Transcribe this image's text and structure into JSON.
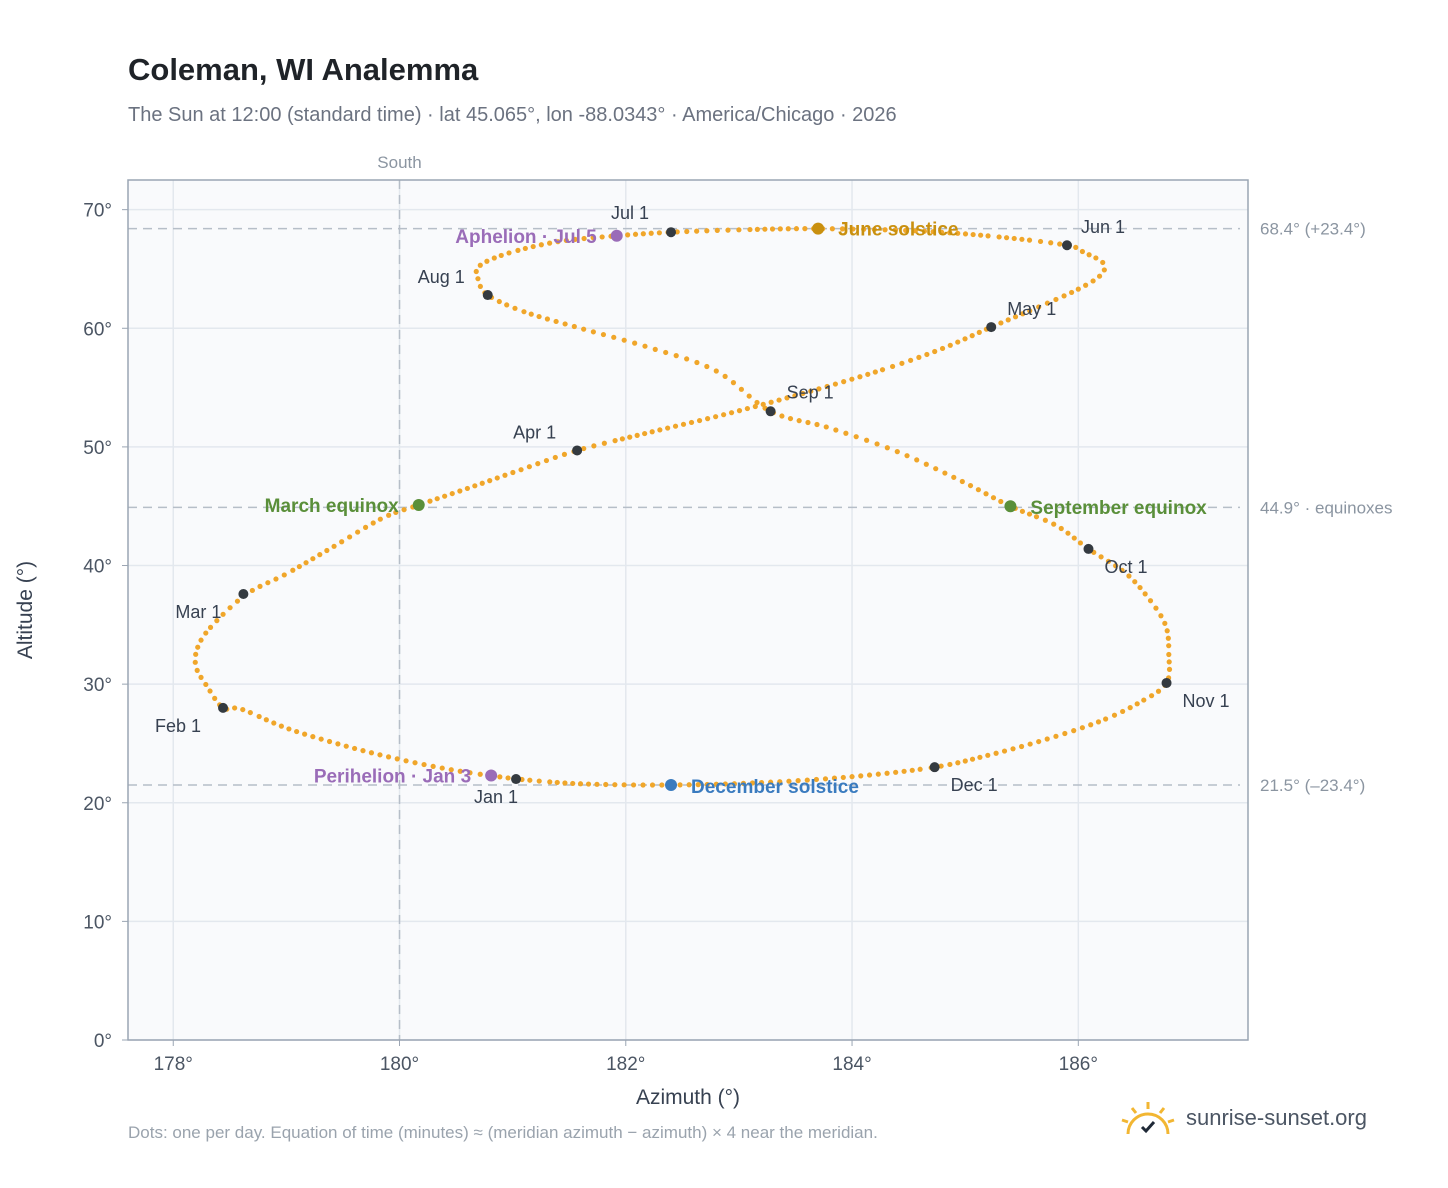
{
  "title": "Coleman, WI Analemma",
  "subtitle": "The Sun at 12:00 (standard time) · lat 45.065°, lon -88.0343° · America/Chicago · 2026",
  "footnote": "Dots: one per day. Equation of time (minutes) ≈ (meridian azimuth − azimuth) × 4 near the meridian.",
  "brand": {
    "name": "sunrise-sunset.org",
    "icon": "sun-logo-icon"
  },
  "colors": {
    "path": "#f0a62a",
    "month_marker": "#343a40",
    "june_solstice": "#c9900f",
    "december_solstice": "#3a7bbf",
    "equinox": "#5a8f3a",
    "apsis": "#9a6cb8",
    "grid": "#e3e8ee",
    "plot_bg": "#f9fafc",
    "ref_line": "#b6bec8"
  },
  "chart_data": {
    "type": "scatter",
    "xlabel": "Azimuth (°)",
    "ylabel": "Altitude (°)",
    "xlim": [
      177.6,
      187.5
    ],
    "ylim": [
      0,
      72.5
    ],
    "x_ticks": [
      {
        "value": 178,
        "label": "178°"
      },
      {
        "value": 180,
        "label": "180°"
      },
      {
        "value": 182,
        "label": "182°"
      },
      {
        "value": 184,
        "label": "184°"
      },
      {
        "value": 186,
        "label": "186°"
      }
    ],
    "y_ticks": [
      {
        "value": 0,
        "label": "0°"
      },
      {
        "value": 10,
        "label": "10°"
      },
      {
        "value": 20,
        "label": "20°"
      },
      {
        "value": 30,
        "label": "30°"
      },
      {
        "value": 40,
        "label": "40°"
      },
      {
        "value": 50,
        "label": "50°"
      },
      {
        "value": 60,
        "label": "60°"
      },
      {
        "value": 70,
        "label": "70°"
      }
    ],
    "grid": true,
    "meridian": {
      "azimuth": 180,
      "label": "South"
    },
    "reference_lines": [
      {
        "altitude": 68.4,
        "label": "68.4° (+23.4°)"
      },
      {
        "altitude": 44.9,
        "label": "44.9° · equinoxes"
      },
      {
        "altitude": 21.5,
        "label": "21.5° (–23.4°)"
      }
    ],
    "daily_path": [
      [
        181.03,
        22.0
      ],
      [
        180.51,
        22.7
      ],
      [
        179.98,
        23.7
      ],
      [
        179.48,
        24.9
      ],
      [
        179.0,
        26.3
      ],
      [
        178.6,
        27.9
      ],
      [
        178.44,
        28.0
      ],
      [
        178.3,
        29.8
      ],
      [
        178.2,
        31.5
      ],
      [
        178.22,
        33.2
      ],
      [
        178.35,
        35.0
      ],
      [
        178.65,
        37.6
      ],
      [
        179.0,
        39.3
      ],
      [
        179.4,
        41.5
      ],
      [
        179.85,
        44.0
      ],
      [
        180.17,
        45.1
      ],
      [
        180.6,
        46.5
      ],
      [
        181.05,
        48.0
      ],
      [
        181.57,
        49.7
      ],
      [
        182.2,
        51.2
      ],
      [
        182.9,
        52.8
      ],
      [
        183.6,
        54.6
      ],
      [
        184.3,
        56.6
      ],
      [
        184.8,
        58.3
      ],
      [
        185.23,
        60.1
      ],
      [
        185.65,
        61.8
      ],
      [
        186.0,
        63.3
      ],
      [
        186.2,
        64.5
      ],
      [
        186.22,
        65.5
      ],
      [
        186.05,
        66.4
      ],
      [
        185.9,
        67.0
      ],
      [
        185.3,
        67.7
      ],
      [
        184.6,
        68.2
      ],
      [
        183.7,
        68.4
      ],
      [
        183.0,
        68.3
      ],
      [
        182.4,
        68.1
      ],
      [
        181.92,
        67.8
      ],
      [
        181.4,
        67.3
      ],
      [
        180.95,
        66.3
      ],
      [
        180.7,
        65.2
      ],
      [
        180.7,
        64.0
      ],
      [
        180.78,
        62.8
      ],
      [
        181.1,
        61.4
      ],
      [
        181.6,
        60.0
      ],
      [
        182.2,
        58.4
      ],
      [
        182.8,
        56.4
      ],
      [
        183.28,
        53.0
      ],
      [
        183.8,
        51.6
      ],
      [
        184.4,
        49.6
      ],
      [
        184.95,
        47.2
      ],
      [
        185.4,
        45.0
      ],
      [
        185.8,
        43.4
      ],
      [
        186.09,
        41.4
      ],
      [
        186.4,
        39.5
      ],
      [
        186.6,
        37.5
      ],
      [
        186.77,
        35.0
      ],
      [
        186.8,
        32.5
      ],
      [
        186.78,
        30.1
      ],
      [
        186.55,
        28.5
      ],
      [
        186.2,
        26.9
      ],
      [
        185.7,
        25.3
      ],
      [
        185.2,
        24.0
      ],
      [
        184.73,
        23.0
      ],
      [
        184.0,
        22.2
      ],
      [
        183.2,
        21.7
      ],
      [
        182.4,
        21.5
      ],
      [
        181.6,
        21.6
      ],
      [
        181.03,
        22.0
      ]
    ],
    "month_markers": [
      {
        "label": "Jan 1",
        "x": 181.03,
        "y": 22.0
      },
      {
        "label": "Feb 1",
        "x": 178.44,
        "y": 28.0
      },
      {
        "label": "Mar 1",
        "x": 178.62,
        "y": 37.6
      },
      {
        "label": "Apr 1",
        "x": 181.57,
        "y": 49.7
      },
      {
        "label": "May 1",
        "x": 185.23,
        "y": 60.1
      },
      {
        "label": "Jun 1",
        "x": 185.9,
        "y": 67.0
      },
      {
        "label": "Jul 1",
        "x": 182.4,
        "y": 68.1
      },
      {
        "label": "Aug 1",
        "x": 180.78,
        "y": 62.8
      },
      {
        "label": "Sep 1",
        "x": 183.28,
        "y": 53.0
      },
      {
        "label": "Oct 1",
        "x": 186.09,
        "y": 41.4
      },
      {
        "label": "Nov 1",
        "x": 186.78,
        "y": 30.1
      },
      {
        "label": "Dec 1",
        "x": 184.73,
        "y": 23.0
      }
    ],
    "events": [
      {
        "label": "June solstice",
        "x": 183.7,
        "y": 68.4,
        "kind": "june"
      },
      {
        "label": "December solstice",
        "x": 182.4,
        "y": 21.5,
        "kind": "december"
      },
      {
        "label": "March equinox",
        "x": 180.17,
        "y": 45.1,
        "kind": "equinox"
      },
      {
        "label": "September equinox",
        "x": 185.4,
        "y": 45.0,
        "kind": "equinox"
      },
      {
        "label": "Aphelion · Jul 5",
        "x": 181.92,
        "y": 67.8,
        "kind": "apsis"
      },
      {
        "label": "Perihelion · Jan 3",
        "x": 180.81,
        "y": 22.3,
        "kind": "apsis"
      }
    ]
  }
}
